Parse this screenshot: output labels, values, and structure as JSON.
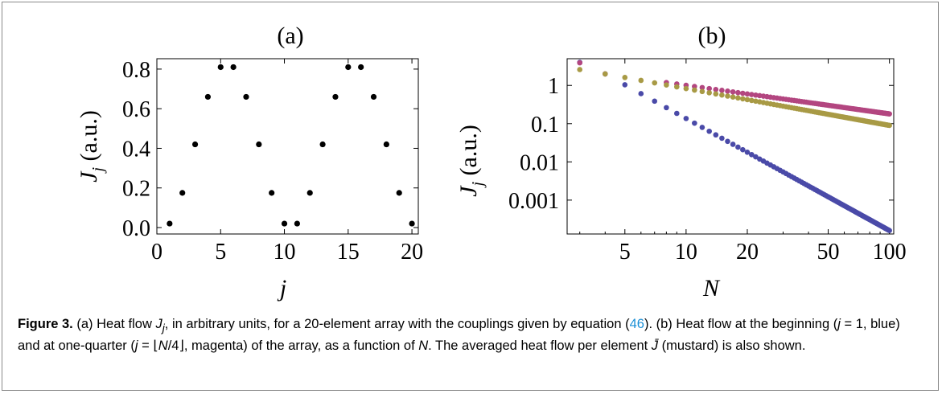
{
  "chart_data": [
    {
      "type": "scatter",
      "title": "(a)",
      "xlabel": "j",
      "ylabel": "J_j (a.u.)",
      "xlim": [
        0,
        20.5
      ],
      "ylim": [
        0,
        0.82
      ],
      "xticks": [
        0,
        5,
        10,
        15,
        20
      ],
      "xtick_labels": [
        "0",
        "5",
        "10",
        "15",
        "20"
      ],
      "yticks": [
        0.0,
        0.2,
        0.4,
        0.6,
        0.8
      ],
      "ytick_labels": [
        "0.0",
        "0.2",
        "0.4",
        "0.6",
        "0.8"
      ],
      "grid": false,
      "series": [
        {
          "color": "#000000",
          "x": [
            1,
            2,
            3,
            4,
            5,
            6,
            7,
            8,
            9,
            10,
            11,
            12,
            13,
            14,
            15,
            16,
            17,
            18,
            19,
            20
          ],
          "y": [
            0.02,
            0.175,
            0.42,
            0.66,
            0.81,
            0.81,
            0.66,
            0.42,
            0.175,
            0.02,
            0.02,
            0.175,
            0.42,
            0.66,
            0.81,
            0.81,
            0.66,
            0.42,
            0.175,
            0.02
          ]
        }
      ]
    },
    {
      "type": "scatter",
      "title": "(b)",
      "xlabel": "N",
      "ylabel": "J_j (a.u.)",
      "xscale": "log",
      "yscale": "log",
      "xlim": [
        2.6,
        105
      ],
      "ylim": [
        0.00013,
        5
      ],
      "xticks": [
        5,
        10,
        20,
        50,
        100
      ],
      "xtick_labels": [
        "5",
        "10",
        "20",
        "50",
        "100"
      ],
      "yticks": [
        1,
        0.1,
        0.01,
        0.001
      ],
      "ytick_labels": [
        "1",
        "0.1",
        "0.01",
        "0.001"
      ],
      "grid": false,
      "series": [
        {
          "color": "#4a4aa8",
          "description_key": "blue",
          "x_range": [
            3,
            100
          ],
          "endpoints": [
            [
              3,
              4.0
            ],
            [
              4,
              2.0
            ],
            [
              100,
              0.00016
            ]
          ]
        },
        {
          "color": "#b34680",
          "description_key": "magenta",
          "x_range": [
            3,
            100
          ],
          "endpoints": [
            [
              3,
              3.9
            ],
            [
              4,
              2.0
            ],
            [
              100,
              0.18
            ]
          ]
        },
        {
          "color": "#a89a45",
          "description_key": "mustard",
          "x_range": [
            3,
            100
          ],
          "endpoints": [
            [
              3,
              2.6
            ],
            [
              4,
              2.0
            ],
            [
              100,
              0.09
            ]
          ]
        }
      ]
    }
  ],
  "caption": {
    "label": "Figure 3.",
    "part1": " (a) Heat flow ",
    "jj": "J",
    "jj_sub": "j",
    "part2": ", in arbitrary units, for a 20-element array with the couplings given by equation (",
    "ref": "46",
    "part3": "). (b) Heat flow at the beginning (",
    "j1": "j",
    "part4": " = 1, blue) and at one-quarter (",
    "j2": "j",
    "part5": " = ⌊",
    "n1": "N",
    "part6": "/4⌋, magenta) of the array, as a function of ",
    "n2": "N",
    "part7": ". The averaged heat flow per element ",
    "jbar": "J̄",
    "part8": " (mustard) is also shown."
  }
}
